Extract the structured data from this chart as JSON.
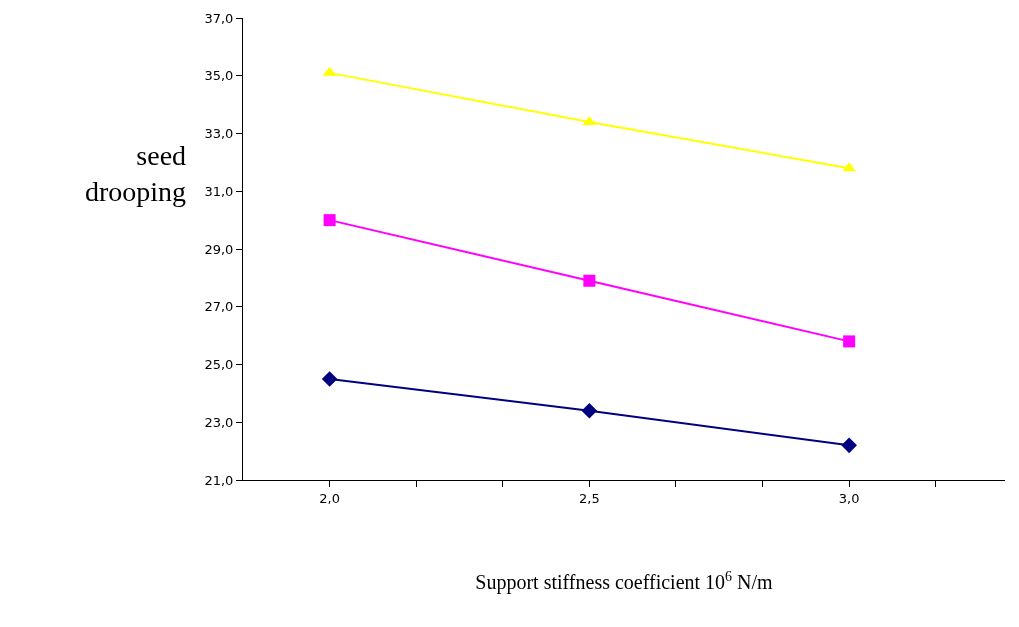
{
  "chart_data": {
    "type": "line",
    "ylabel": "seed\ndrooping",
    "xlabel": "Support stiffness coefficient 10$^{6}$ N/m",
    "x": [
      2.0,
      2.5,
      3.0
    ],
    "series": [
      {
        "color": "#ffff00",
        "marker": "triangle",
        "values": [
          35.1,
          33.4,
          31.8
        ]
      },
      {
        "color": "#ff00ff",
        "marker": "square",
        "values": [
          30.0,
          27.9,
          25.8
        ]
      },
      {
        "color": "#000080",
        "marker": "diamond",
        "values": [
          24.5,
          23.4,
          22.2
        ]
      }
    ],
    "xlim": [
      1.8333,
      3.3
    ],
    "xticks": [
      {
        "value": 2.0,
        "label": "2,0"
      },
      {
        "value": 2.1667,
        "label": null
      },
      {
        "value": 2.3333,
        "label": null
      },
      {
        "value": 2.5,
        "label": "2,5"
      },
      {
        "value": 2.6667,
        "label": null
      },
      {
        "value": 2.8333,
        "label": null
      },
      {
        "value": 3.0,
        "label": "3,0"
      },
      {
        "value": 3.1667,
        "label": null
      }
    ],
    "ylim": [
      21,
      37
    ],
    "yticks": [
      {
        "value": 21,
        "label": "21,0"
      },
      {
        "value": 23,
        "label": "23,0"
      },
      {
        "value": 25,
        "label": "25,0"
      },
      {
        "value": 27,
        "label": "27,0"
      },
      {
        "value": 29,
        "label": "29,0"
      },
      {
        "value": 31,
        "label": "31,0"
      },
      {
        "value": 33,
        "label": "33,0"
      },
      {
        "value": 35,
        "label": "35,0"
      },
      {
        "value": 37,
        "label": "37,0"
      }
    ],
    "grid": false,
    "legend": false,
    "line_style": "solid"
  }
}
